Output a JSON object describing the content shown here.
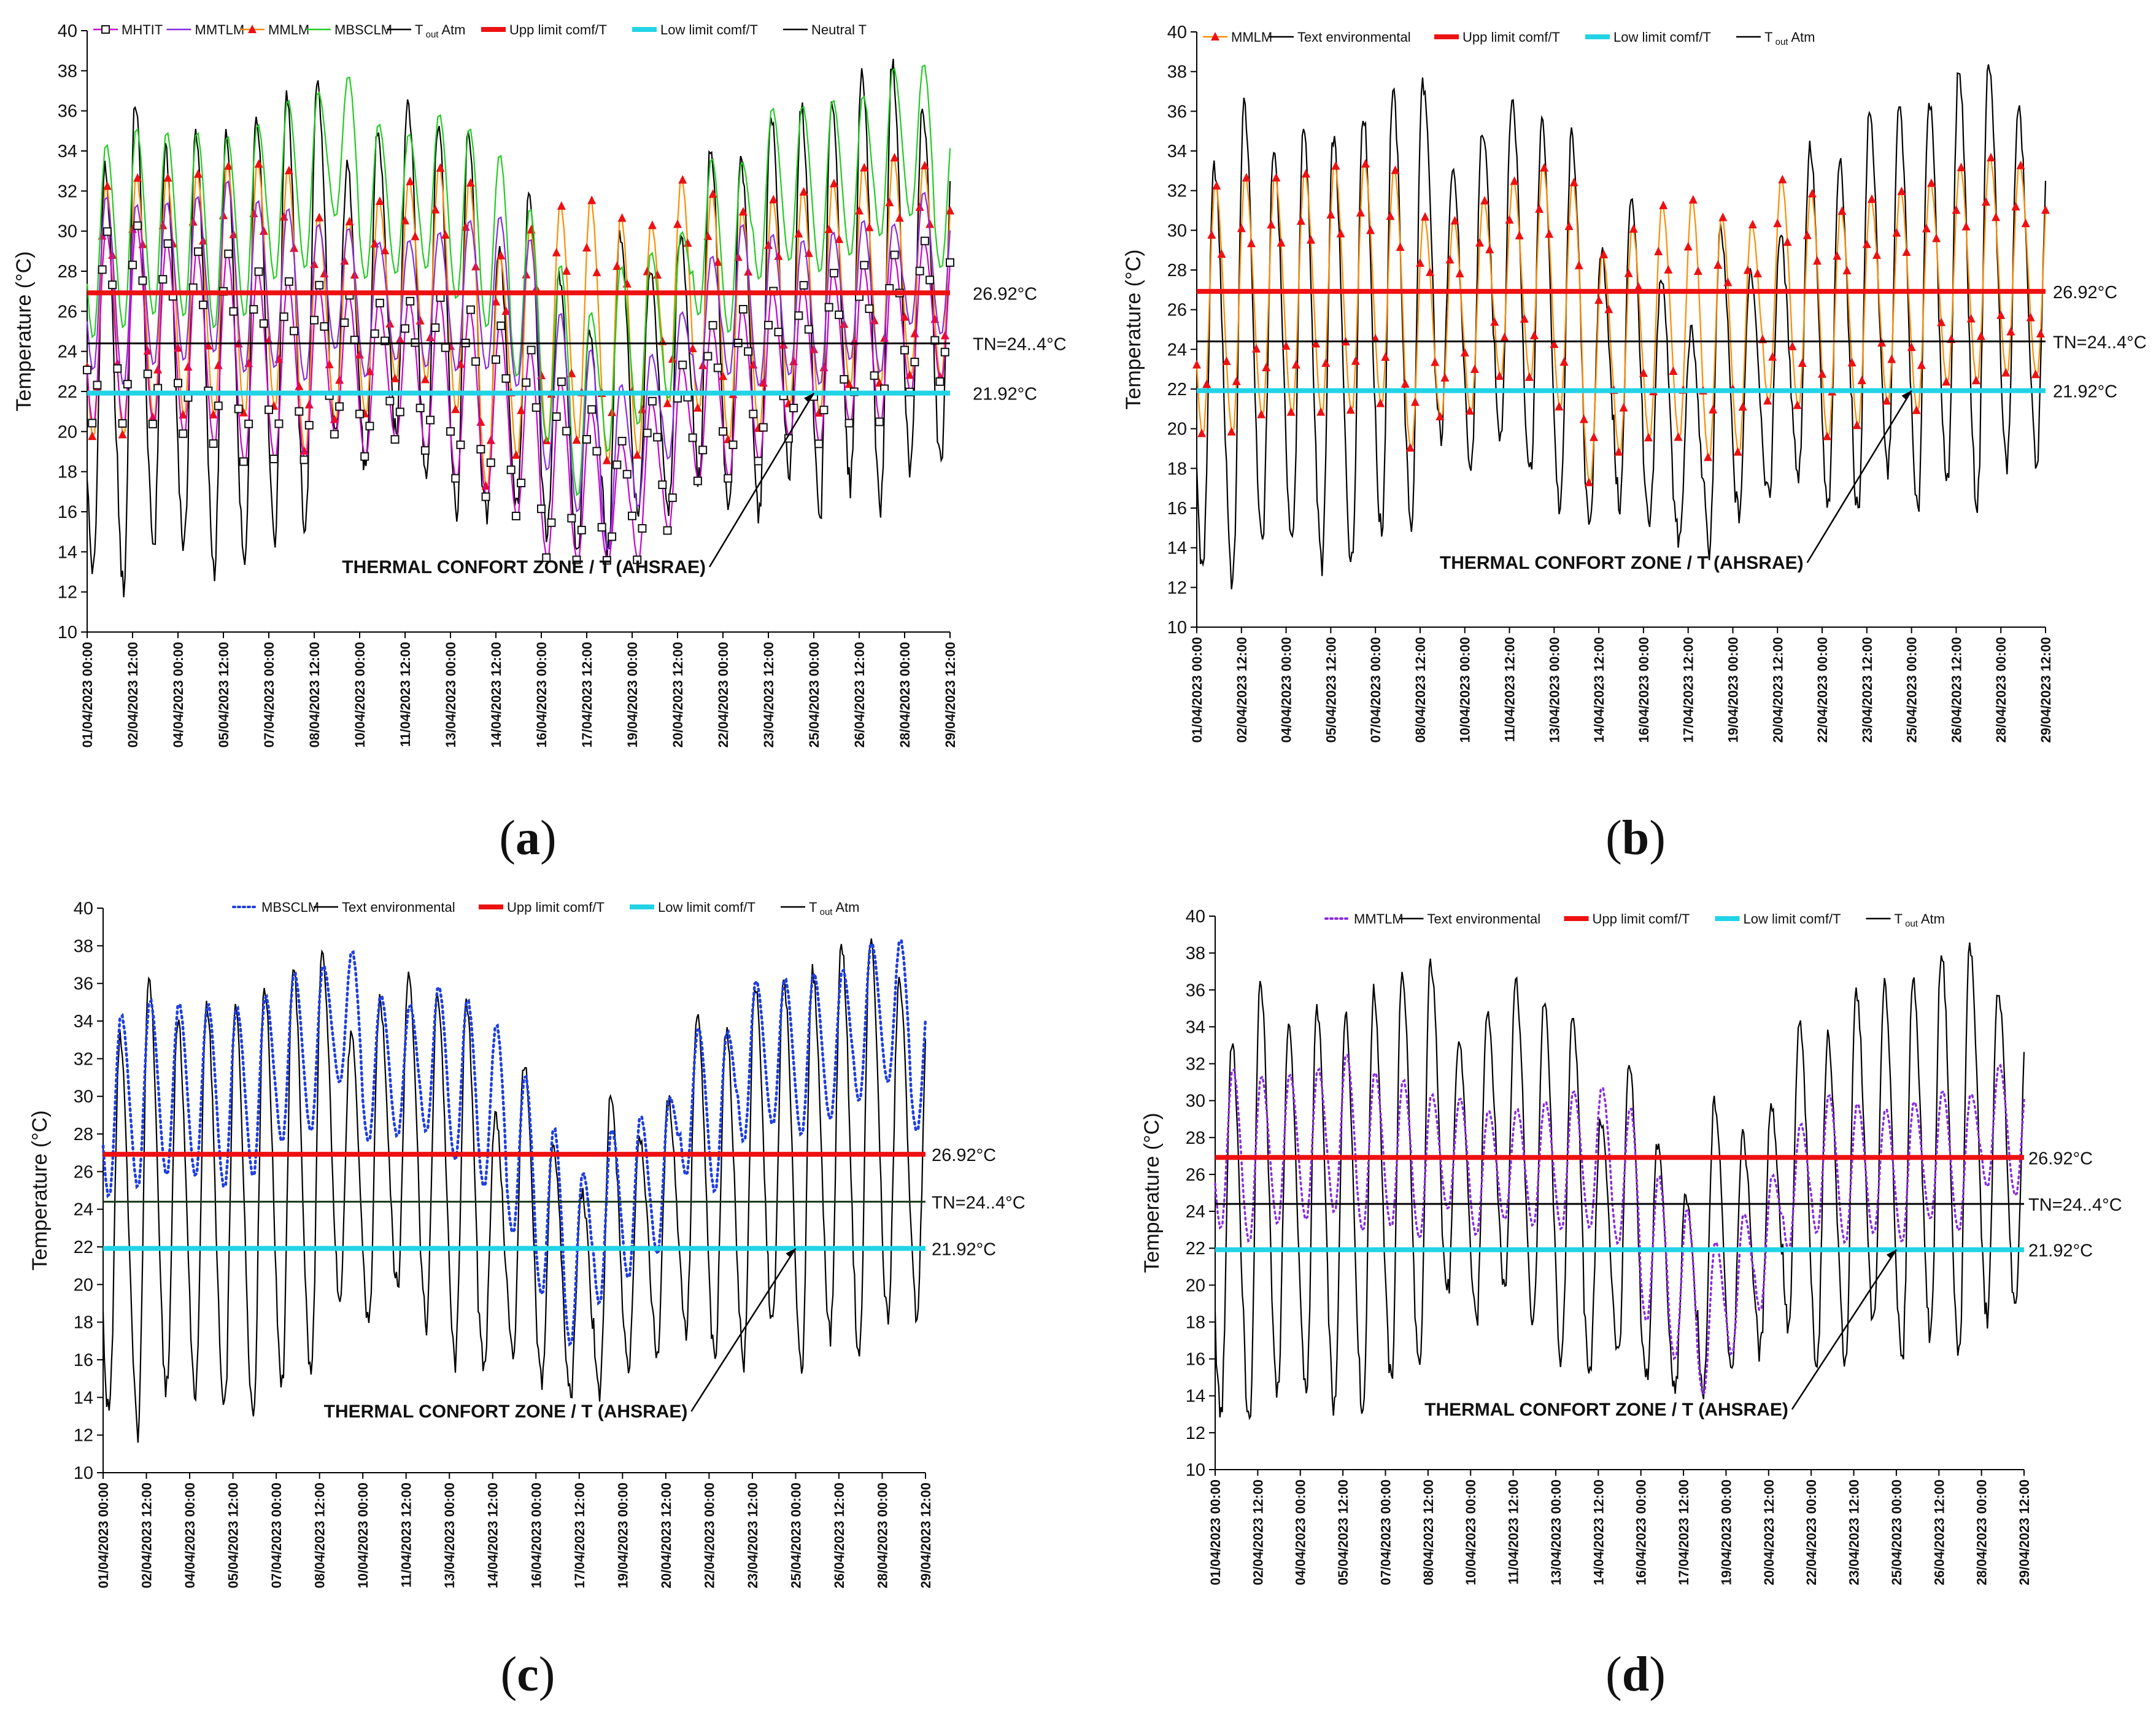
{
  "figure": {
    "panel_labels": {
      "a": [
        "(",
        "a",
        ")"
      ],
      "b": [
        "(",
        "b",
        ")"
      ],
      "c": [
        "(",
        "c",
        ")"
      ],
      "d": [
        "(",
        "d",
        ")"
      ]
    }
  },
  "chart_data": [
    {
      "id": "a",
      "type": "line",
      "title": "",
      "ylabel": "Temperature  (°C)",
      "xlabel": "",
      "ylim": [
        10,
        40
      ],
      "yticks": [
        "10",
        "12",
        "14",
        "16",
        "18",
        "20",
        "22",
        "24",
        "26",
        "28",
        "30",
        "32",
        "34",
        "36",
        "38",
        "40"
      ],
      "x_range_hours": [
        0,
        684
      ],
      "x_ticks": [
        "01/04/2023 00:00",
        "02/04/2023 12:00",
        "04/04/2023 00:00",
        "05/04/2023 12:00",
        "07/04/2023 00:00",
        "08/04/2023 12:00",
        "10/04/2023 00:00",
        "11/04/2023 12:00",
        "13/04/2023 00:00",
        "14/04/2023 12:00",
        "16/04/2023 00:00",
        "17/04/2023 12:00",
        "19/04/2023 00:00",
        "20/04/2023 12:00",
        "22/04/2023 00:00",
        "23/04/2023 12:00",
        "25/04/2023 00:00",
        "26/04/2023 12:00",
        "28/04/2023 00:00",
        "29/04/2023 12:00"
      ],
      "legend": [
        {
          "label": "MHTIT",
          "color": "#cc00cc",
          "marker": "square-open"
        },
        {
          "label": "MMTLM",
          "color": "#8a2be2",
          "marker": "none"
        },
        {
          "label": "MMLM",
          "color": "#ff8c00",
          "marker": "triangle-red"
        },
        {
          "label": "MBSCLM",
          "color": "#22cc22",
          "marker": "none"
        },
        {
          "label_main": "T",
          "label_sub": "out",
          "label_tail": " Atm",
          "color": "#000000",
          "marker": "none"
        },
        {
          "label": "Upp limit comf/T",
          "color": "#ee1111",
          "marker": "thick"
        },
        {
          "label": "Low limit comf/T",
          "color": "#22d3e6",
          "marker": "thick"
        },
        {
          "label": "Neutral T",
          "color": "#000000",
          "marker": "none"
        }
      ],
      "reference_lines": [
        {
          "name": "upper-limit",
          "value": 26.92,
          "label": "26.92°C",
          "color": "#ee1111"
        },
        {
          "name": "neutral",
          "value": 24.4,
          "label": "TN=24..4°C",
          "color": "#000000"
        },
        {
          "name": "lower-limit",
          "value": 21.92,
          "label": "21.92°C",
          "color": "#22d3e6"
        }
      ],
      "annotation": {
        "text": "THERMAL  CONFORT  ZONE / T (AHSRAE)",
        "arrow_to": {
          "hour": 576,
          "temp": 21.92
        }
      },
      "daily_max_outdoor": [
        33.2,
        36.4,
        34.0,
        35.0,
        34.7,
        35.9,
        37.0,
        37.5,
        33.2,
        35.0,
        36.6,
        35.4,
        34.8,
        29.0,
        31.8,
        27.6,
        24.9,
        29.9,
        28.0,
        29.8,
        34.2,
        33.5,
        35.9,
        36.2,
        36.6,
        38.1,
        38.4,
        36.1,
        34.6
      ],
      "daily_min_outdoor": [
        13.0,
        12.2,
        14.4,
        14.2,
        13.2,
        13.2,
        14.8,
        15.2,
        19.7,
        17.9,
        19.8,
        17.9,
        15.9,
        15.6,
        16.2,
        15.0,
        14.3,
        14.0,
        15.7,
        16.4,
        17.6,
        15.9,
        15.8,
        17.9,
        15.7,
        17.3,
        16.2,
        18.2,
        18.5
      ],
      "series_daily_max": [
        {
          "name": "MMLM",
          "values": [
            32.4,
            32.8,
            32.8,
            33.0,
            33.4,
            33.5,
            33.2,
            30.8,
            30.6,
            31.6,
            32.6,
            33.3,
            32.6,
            28.9,
            30.2,
            31.4,
            31.7,
            30.8,
            30.4,
            32.7,
            32.0,
            31.1,
            31.7,
            32.1,
            32.5,
            33.3,
            33.8,
            33.4,
            33.2
          ]
        },
        {
          "name": "MBSCLM",
          "values": [
            34.4,
            35.2,
            35.0,
            35.0,
            34.8,
            35.4,
            36.6,
            37.0,
            37.8,
            35.4,
            34.9,
            35.9,
            35.2,
            33.9,
            31.2,
            28.4,
            26.0,
            28.3,
            29.0,
            30.0,
            33.7,
            33.5,
            36.2,
            36.3,
            36.6,
            36.8,
            38.2,
            38.4,
            35.7
          ]
        },
        {
          "name": "MMTLM",
          "values": [
            31.8,
            31.4,
            31.5,
            31.8,
            32.6,
            31.6,
            31.2,
            30.4,
            30.2,
            29.5,
            29.6,
            30.0,
            30.6,
            30.8,
            29.7,
            26.0,
            24.2,
            22.4,
            23.9,
            26.0,
            28.8,
            30.4,
            29.9,
            29.6,
            30.0,
            30.6,
            30.4,
            32.0,
            31.4
          ]
        },
        {
          "name": "MHTIT",
          "values": [
            30.1,
            30.4,
            29.5,
            29.1,
            29.0,
            28.1,
            27.6,
            27.4,
            26.9,
            26.5,
            26.6,
            26.8,
            26.2,
            25.4,
            24.2,
            22.6,
            21.2,
            19.6,
            21.6,
            23.4,
            25.4,
            26.2,
            27.1,
            27.4,
            28.0,
            28.4,
            28.9,
            29.6,
            30.0
          ]
        }
      ]
    },
    {
      "id": "b",
      "type": "line",
      "title": "",
      "ylabel": "Temperature  (°C)",
      "xlabel": "",
      "ylim": [
        10,
        40
      ],
      "yticks": [
        "10",
        "12",
        "14",
        "16",
        "18",
        "20",
        "22",
        "24",
        "26",
        "28",
        "30",
        "32",
        "34",
        "36",
        "38",
        "40"
      ],
      "x_range_hours": [
        0,
        684
      ],
      "x_ticks": [
        "01/04/2023 00:00",
        "02/04/2023 12:00",
        "04/04/2023 00:00",
        "05/04/2023 12:00",
        "07/04/2023 00:00",
        "08/04/2023 12:00",
        "10/04/2023 00:00",
        "11/04/2023 12:00",
        "13/04/2023 00:00",
        "14/04/2023 12:00",
        "16/04/2023 00:00",
        "17/04/2023 12:00",
        "19/04/2023 00:00",
        "20/04/2023 12:00",
        "22/04/2023 00:00",
        "23/04/2023 12:00",
        "25/04/2023 00:00",
        "26/04/2023 12:00",
        "28/04/2023 00:00",
        "29/04/2023 12:00"
      ],
      "legend": [
        {
          "label": "MMLM",
          "color": "#ff8c00",
          "marker": "triangle-red"
        },
        {
          "label": "Text environmental",
          "color": "#000000",
          "marker": "none"
        },
        {
          "label": "Upp limit comf/T",
          "color": "#ee1111",
          "marker": "thick"
        },
        {
          "label": "Low limit comf/T",
          "color": "#22d3e6",
          "marker": "thick"
        },
        {
          "label_main": "T",
          "label_sub": "out",
          "label_tail": " Atm",
          "color": "#000000",
          "marker": "none"
        }
      ],
      "reference_lines": [
        {
          "name": "upper-limit",
          "value": 26.92,
          "label": "26.92°C",
          "color": "#ee1111"
        },
        {
          "name": "neutral",
          "value": 24.4,
          "label": "TN=24..4°C",
          "color": "#000000"
        },
        {
          "name": "lower-limit",
          "value": 21.92,
          "label": "21.92°C",
          "color": "#22d3e6"
        }
      ],
      "annotation": {
        "text": "THERMAL  CONFORT  ZONE / T (AHSRAE)",
        "arrow_to": {
          "hour": 576,
          "temp": 21.92
        }
      },
      "daily_max_outdoor": [
        33.2,
        36.4,
        34.0,
        35.0,
        34.7,
        35.9,
        37.0,
        37.5,
        33.2,
        35.0,
        36.6,
        35.4,
        34.8,
        29.0,
        31.8,
        27.6,
        24.9,
        29.9,
        28.0,
        29.8,
        34.2,
        33.5,
        35.9,
        36.2,
        36.6,
        38.1,
        38.4,
        36.1,
        34.6
      ],
      "daily_min_outdoor": [
        13.0,
        12.2,
        14.4,
        14.2,
        13.2,
        13.2,
        14.8,
        15.2,
        19.7,
        17.9,
        19.8,
        17.9,
        15.9,
        15.6,
        16.2,
        15.0,
        14.3,
        14.0,
        15.7,
        16.4,
        17.6,
        15.9,
        15.8,
        17.9,
        15.7,
        17.3,
        16.2,
        18.2,
        18.5
      ],
      "series_daily_max": [
        {
          "name": "MMLM",
          "values": [
            32.4,
            32.8,
            32.8,
            33.0,
            33.4,
            33.5,
            33.2,
            30.8,
            30.6,
            31.6,
            32.6,
            33.3,
            32.6,
            28.9,
            30.2,
            31.4,
            31.7,
            30.8,
            30.4,
            32.7,
            32.0,
            31.1,
            31.7,
            32.1,
            32.5,
            33.3,
            33.8,
            33.4,
            33.2
          ]
        }
      ]
    },
    {
      "id": "c",
      "type": "line",
      "title": "",
      "ylabel": "Temperature  (°C)",
      "xlabel": "",
      "ylim": [
        10,
        40
      ],
      "yticks": [
        "10",
        "12",
        "14",
        "16",
        "18",
        "20",
        "22",
        "24",
        "26",
        "28",
        "30",
        "32",
        "34",
        "36",
        "38",
        "40"
      ],
      "x_range_hours": [
        0,
        684
      ],
      "x_ticks": [
        "01/04/2023 00:00",
        "02/04/2023 12:00",
        "04/04/2023 00:00",
        "05/04/2023 12:00",
        "07/04/2023 00:00",
        "08/04/2023 12:00",
        "10/04/2023 00:00",
        "11/04/2023 12:00",
        "13/04/2023 00:00",
        "14/04/2023 12:00",
        "16/04/2023 00:00",
        "17/04/2023 12:00",
        "19/04/2023 00:00",
        "20/04/2023 12:00",
        "22/04/2023 00:00",
        "23/04/2023 12:00",
        "25/04/2023 00:00",
        "26/04/2023 12:00",
        "28/04/2023 00:00",
        "29/04/2023 12:00"
      ],
      "legend": [
        {
          "label": "MBSCLM",
          "color": "#1f3fe0",
          "marker": "dotted"
        },
        {
          "label": "Text environmental",
          "color": "#000000",
          "marker": "none"
        },
        {
          "label": "Upp limit comf/T",
          "color": "#ee1111",
          "marker": "thick"
        },
        {
          "label": "Low limit comf/T",
          "color": "#22d3e6",
          "marker": "thick"
        },
        {
          "label_main": "T",
          "label_sub": "out",
          "label_tail": " Atm",
          "color": "#000000",
          "marker": "none"
        }
      ],
      "reference_lines": [
        {
          "name": "upper-limit",
          "value": 26.92,
          "label": "26.92°C",
          "color": "#ee1111"
        },
        {
          "name": "neutral",
          "value": 24.4,
          "label": "TN=24..4°C",
          "color": "#1a3a1a"
        },
        {
          "name": "lower-limit",
          "value": 21.92,
          "label": "21.92°C",
          "color": "#22d3e6"
        }
      ],
      "annotation": {
        "text": "THERMAL  CONFORT  ZONE / T (AHSRAE)",
        "arrow_to": {
          "hour": 576,
          "temp": 21.92
        }
      },
      "daily_max_outdoor": [
        33.2,
        36.4,
        34.0,
        35.0,
        34.7,
        35.9,
        37.0,
        37.5,
        33.2,
        35.0,
        36.6,
        35.4,
        34.8,
        29.0,
        31.8,
        27.6,
        24.9,
        29.9,
        28.0,
        29.8,
        34.2,
        33.5,
        35.9,
        36.2,
        36.6,
        38.1,
        38.4,
        36.1,
        34.6
      ],
      "daily_min_outdoor": [
        13.0,
        12.2,
        14.4,
        14.2,
        13.2,
        13.2,
        14.8,
        15.2,
        19.7,
        17.9,
        19.8,
        17.9,
        15.9,
        15.6,
        16.2,
        15.0,
        14.3,
        14.0,
        15.7,
        16.4,
        17.6,
        15.9,
        15.8,
        17.9,
        15.7,
        17.3,
        16.2,
        18.2,
        18.5
      ],
      "series_daily_max": [
        {
          "name": "MBSCLM",
          "values": [
            34.4,
            35.2,
            35.0,
            35.0,
            34.8,
            35.4,
            36.6,
            37.0,
            37.8,
            35.4,
            34.9,
            35.9,
            35.2,
            33.9,
            31.2,
            28.4,
            26.0,
            28.3,
            29.0,
            30.0,
            33.7,
            33.5,
            36.2,
            36.3,
            36.6,
            36.8,
            38.2,
            38.4,
            35.7
          ]
        }
      ]
    },
    {
      "id": "d",
      "type": "line",
      "title": "",
      "ylabel": "Temperature  (°C)",
      "xlabel": "",
      "ylim": [
        10,
        40
      ],
      "yticks": [
        "10",
        "12",
        "14",
        "16",
        "18",
        "20",
        "22",
        "24",
        "26",
        "28",
        "30",
        "32",
        "34",
        "36",
        "38",
        "40"
      ],
      "x_range_hours": [
        0,
        684
      ],
      "x_ticks": [
        "01/04/2023 00:00",
        "02/04/2023 12:00",
        "04/04/2023 00:00",
        "05/04/2023 12:00",
        "07/04/2023 00:00",
        "08/04/2023 12:00",
        "10/04/2023 00:00",
        "11/04/2023 12:00",
        "13/04/2023 00:00",
        "14/04/2023 12:00",
        "16/04/2023 00:00",
        "17/04/2023 12:00",
        "19/04/2023 00:00",
        "20/04/2023 12:00",
        "22/04/2023 00:00",
        "23/04/2023 12:00",
        "25/04/2023 00:00",
        "26/04/2023 12:00",
        "28/04/2023 00:00",
        "29/04/2023 12:00"
      ],
      "legend": [
        {
          "label": "MMTLM",
          "color": "#8a2be2",
          "marker": "dotted"
        },
        {
          "label": "Text environmental",
          "color": "#000000",
          "marker": "none"
        },
        {
          "label": "Upp limit comf/T",
          "color": "#ee1111",
          "marker": "thick"
        },
        {
          "label": "Low limit comf/T",
          "color": "#22d3e6",
          "marker": "thick"
        },
        {
          "label_main": "T",
          "label_sub": "out",
          "label_tail": " Atm",
          "color": "#000000",
          "marker": "none"
        }
      ],
      "reference_lines": [
        {
          "name": "upper-limit",
          "value": 26.92,
          "label": "26.92°C",
          "color": "#ee1111"
        },
        {
          "name": "neutral",
          "value": 24.4,
          "label": "TN=24..4°C",
          "color": "#000000"
        },
        {
          "name": "lower-limit",
          "value": 21.92,
          "label": "21.92°C",
          "color": "#22d3e6"
        }
      ],
      "annotation": {
        "text": "THERMAL  CONFORT  ZONE / T (AHSRAE)",
        "arrow_to": {
          "hour": 576,
          "temp": 21.92
        }
      },
      "daily_max_outdoor": [
        33.2,
        36.4,
        34.0,
        35.0,
        34.7,
        35.9,
        37.0,
        37.5,
        33.2,
        35.0,
        36.6,
        35.4,
        34.8,
        29.0,
        31.8,
        27.6,
        24.9,
        29.9,
        28.0,
        29.8,
        34.2,
        33.5,
        35.9,
        36.2,
        36.6,
        38.1,
        38.4,
        36.1,
        34.6
      ],
      "daily_min_outdoor": [
        13.0,
        12.2,
        14.4,
        14.2,
        13.2,
        13.2,
        14.8,
        15.2,
        19.7,
        17.9,
        19.8,
        17.9,
        15.9,
        15.6,
        16.2,
        15.0,
        14.3,
        14.0,
        15.7,
        16.4,
        17.6,
        15.9,
        15.8,
        17.9,
        15.7,
        17.3,
        16.2,
        18.2,
        18.5
      ],
      "series_daily_max": [
        {
          "name": "MMTLM",
          "values": [
            31.8,
            31.4,
            31.5,
            31.8,
            32.6,
            31.6,
            31.2,
            30.4,
            30.2,
            29.5,
            29.6,
            30.0,
            30.6,
            30.8,
            29.7,
            26.0,
            24.2,
            22.4,
            23.9,
            26.0,
            28.8,
            30.4,
            29.9,
            29.6,
            30.0,
            30.6,
            30.4,
            32.0,
            31.4
          ]
        }
      ]
    }
  ]
}
